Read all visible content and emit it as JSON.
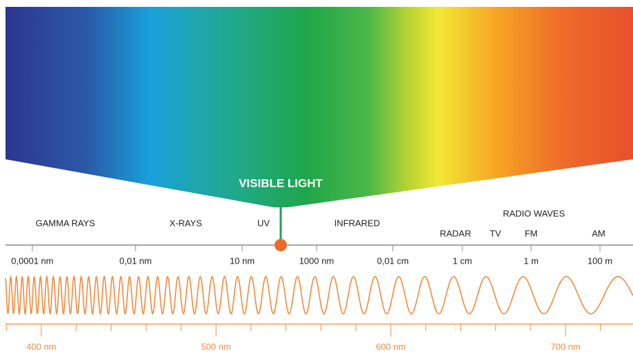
{
  "highlight": "VISIBLE LIGHT",
  "bands": [
    "GAMMA RAYS",
    "X-RAYS",
    "UV",
    "INFRARED",
    "RADIO WAVES",
    "RADAR",
    "TV",
    "FM",
    "AM"
  ],
  "scale_labels": [
    "0,0001 nm",
    "0,01 nm",
    "10 nm",
    "1000 nm",
    "0,01 cm",
    "1 cm",
    "1 m",
    "100 m"
  ],
  "visible_labels": [
    "400 nm",
    "500 nm",
    "600 nm",
    "700 nm"
  ]
}
